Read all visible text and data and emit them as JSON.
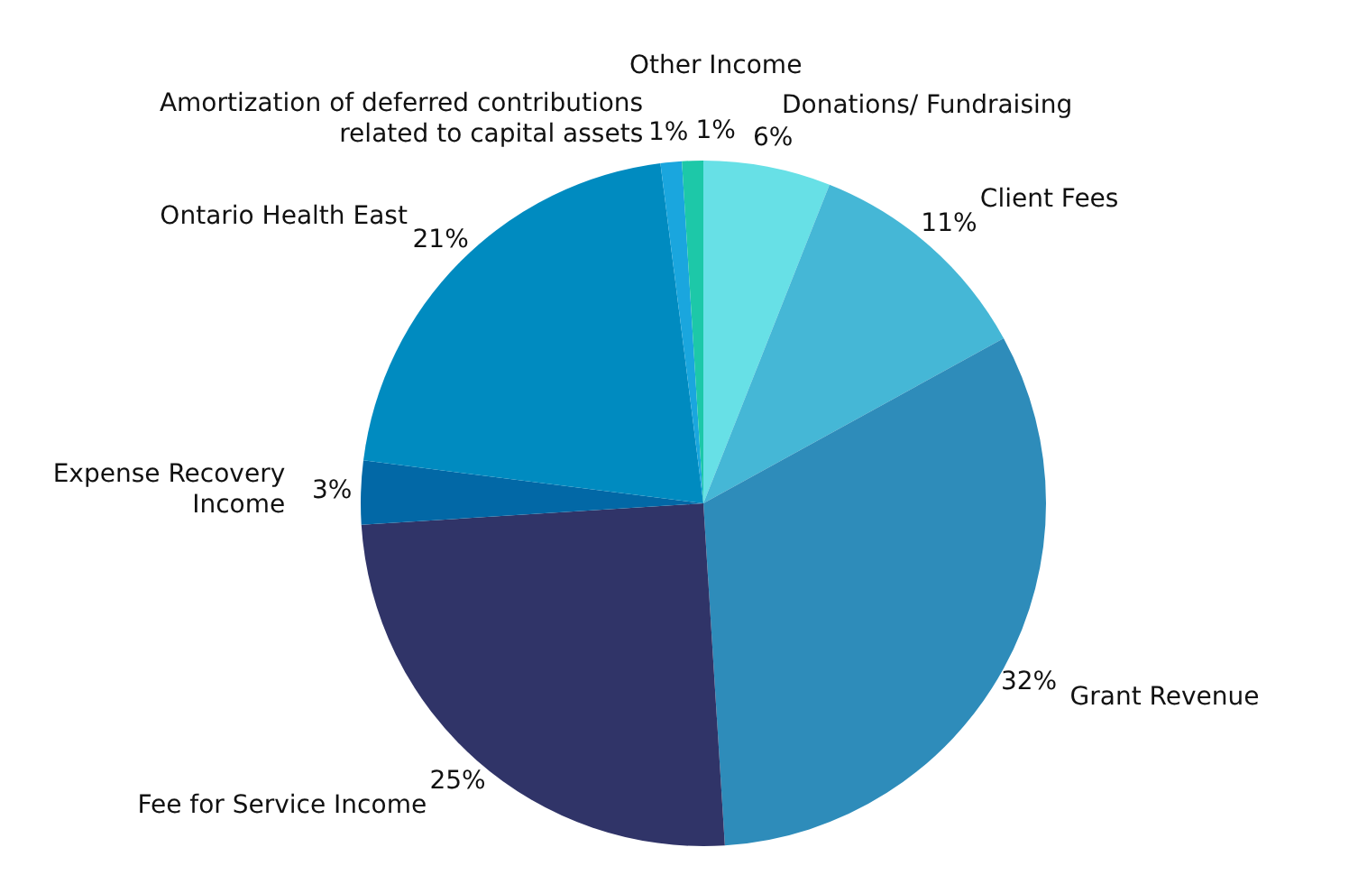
{
  "chart_data": {
    "type": "pie",
    "categories": [
      "Donations/ Fundraising",
      "Client Fees",
      "Grant Revenue",
      "Fee for Service Income",
      "Expense Recovery\n Income",
      "Ontario Health East",
      "Amortization of deferred contributions\nrelated to capital assets",
      "Other Income"
    ],
    "values": [
      6,
      11,
      32,
      25,
      3,
      21,
      1,
      1
    ],
    "colors": [
      "#67e0e6",
      "#45b7d6",
      "#2e8cba",
      "#303468",
      "#0268a6",
      "#008bc0",
      "#1aa6de",
      "#1dc8a8"
    ],
    "value_labels": [
      "6%",
      "11%",
      "32%",
      "25%",
      "3%",
      "21%",
      "1%",
      "1%"
    ],
    "legend": false
  }
}
